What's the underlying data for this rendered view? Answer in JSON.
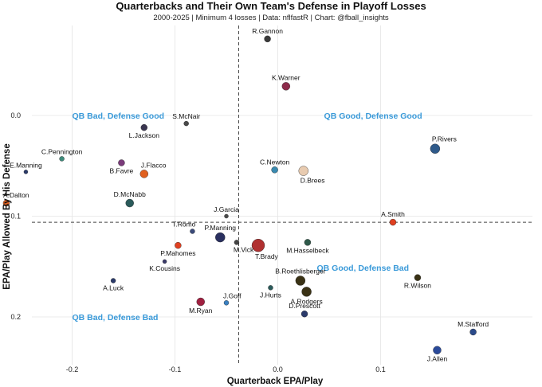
{
  "chart_data": {
    "type": "scatter",
    "title": "Quarterbacks and Their Own Team's Defense in Playoff Losses",
    "subtitle": "2000-2025 | Minimum 4 losses | Data: nflfastR | Chart: @fball_insights",
    "xlabel": "Quarterback EPA/Play",
    "ylabel": "EPA/Play Allowed By His Defense",
    "xlim": [
      -0.26,
      0.2
    ],
    "ylim": [
      0.235,
      -0.095
    ],
    "y_reversed": true,
    "x_ticks": [
      -0.2,
      -0.1,
      0.0,
      0.1
    ],
    "x_tick_labels": [
      "-0.2",
      "-0.1",
      "0.0",
      "0.1"
    ],
    "y_ticks": [
      0.0,
      0.1,
      0.2
    ],
    "y_tick_labels": [
      "0.0",
      "0.1",
      "0.2"
    ],
    "x_ref": -0.038,
    "y_ref": 0.106,
    "grid": true,
    "quadrant_labels": [
      {
        "text": "QB Bad, Defense Good",
        "x": -0.2,
        "y": 0.0
      },
      {
        "text": "QB Good, Defense Good",
        "x": 0.045,
        "y": 0.0
      },
      {
        "text": "QB Good, Defense Bad",
        "x": 0.038,
        "y": 0.151
      },
      {
        "text": "QB Bad, Defense Bad",
        "x": -0.2,
        "y": 0.2
      }
    ],
    "points": [
      {
        "name": "R.Gannon",
        "x": -0.01,
        "y": -0.076,
        "size": 4,
        "color": "#3a3a3a",
        "label_pos": "above"
      },
      {
        "name": "K.Warner",
        "x": 0.008,
        "y": -0.029,
        "size": 5,
        "color": "#8c2a4a",
        "label_pos": "above"
      },
      {
        "name": "S.McNair",
        "x": -0.089,
        "y": 0.008,
        "size": 3,
        "color": "#4a4a4a",
        "label_pos": "above"
      },
      {
        "name": "L.Jackson",
        "x": -0.13,
        "y": 0.012,
        "size": 4,
        "color": "#3a3550",
        "label_pos": "below"
      },
      {
        "name": "P.Rivers",
        "x": 0.153,
        "y": 0.033,
        "size": 6,
        "color": "#2f5a8a",
        "label_pos": "above-right"
      },
      {
        "name": "C.Pennington",
        "x": -0.21,
        "y": 0.043,
        "size": 3,
        "color": "#3d8a7a",
        "label_pos": "above"
      },
      {
        "name": "E.Manning",
        "x": -0.245,
        "y": 0.056,
        "size": 2.5,
        "color": "#2a3a6a",
        "label_pos": "above"
      },
      {
        "name": "B.Favre",
        "x": -0.152,
        "y": 0.047,
        "size": 4,
        "color": "#7a3a7a",
        "label_pos": "below"
      },
      {
        "name": "J.Flacco",
        "x": -0.13,
        "y": 0.058,
        "size": 5,
        "color": "#e0601f",
        "label_pos": "above-right"
      },
      {
        "name": "C.Newton",
        "x": -0.003,
        "y": 0.054,
        "size": 4,
        "color": "#3a8ab0",
        "label_pos": "above"
      },
      {
        "name": "D.Brees",
        "x": 0.025,
        "y": 0.055,
        "size": 6,
        "color": "#e8cbb0",
        "label_pos": "below-right"
      },
      {
        "name": "A.Dalton",
        "x": -0.264,
        "y": 0.087,
        "size": 4,
        "color": "#e0601f",
        "label_pos": "above-right"
      },
      {
        "name": "D.McNabb",
        "x": -0.144,
        "y": 0.087,
        "size": 5,
        "color": "#2a5a5a",
        "label_pos": "above"
      },
      {
        "name": "J.Garcia",
        "x": -0.05,
        "y": 0.1,
        "size": 2.5,
        "color": "#4a4a4a",
        "label_pos": "above"
      },
      {
        "name": "A.Smith",
        "x": 0.112,
        "y": 0.106,
        "size": 4,
        "color": "#e04020",
        "label_pos": "above"
      },
      {
        "name": "T.Romo",
        "x": -0.083,
        "y": 0.115,
        "size": 3,
        "color": "#3a4a7a",
        "label_pos": "above-left"
      },
      {
        "name": "P.Manning",
        "x": -0.056,
        "y": 0.121,
        "size": 6,
        "color": "#2a3060",
        "label_pos": "above"
      },
      {
        "name": "M.Vick",
        "x": -0.04,
        "y": 0.126,
        "size": 3,
        "color": "#444444",
        "label_pos": "below-right"
      },
      {
        "name": "T.Brady",
        "x": -0.019,
        "y": 0.129,
        "size": 8,
        "color": "#b03030",
        "label_pos": "below-right"
      },
      {
        "name": "M.Hasselbeck",
        "x": 0.029,
        "y": 0.126,
        "size": 4,
        "color": "#2f5a4a",
        "label_pos": "below"
      },
      {
        "name": "P.Mahomes",
        "x": -0.097,
        "y": 0.129,
        "size": 4,
        "color": "#e04020",
        "label_pos": "below"
      },
      {
        "name": "K.Cousins",
        "x": -0.11,
        "y": 0.145,
        "size": 2.5,
        "color": "#3a3a6a",
        "label_pos": "below"
      },
      {
        "name": "B.Roethlisberger",
        "x": 0.022,
        "y": 0.164,
        "size": 6,
        "color": "#3a3215",
        "label_pos": "above"
      },
      {
        "name": "R.Wilson",
        "x": 0.136,
        "y": 0.161,
        "size": 4,
        "color": "#3a3215",
        "label_pos": "below"
      },
      {
        "name": "A.Luck",
        "x": -0.16,
        "y": 0.164,
        "size": 3,
        "color": "#2a3a6a",
        "label_pos": "below"
      },
      {
        "name": "J.Hurts",
        "x": -0.007,
        "y": 0.171,
        "size": 3,
        "color": "#2a5a5a",
        "label_pos": "below"
      },
      {
        "name": "A.Rodgers",
        "x": 0.028,
        "y": 0.175,
        "size": 6,
        "color": "#3a3215",
        "label_pos": "below"
      },
      {
        "name": "J.Goff",
        "x": -0.05,
        "y": 0.186,
        "size": 3,
        "color": "#3a80c0",
        "label_pos": "above-right"
      },
      {
        "name": "M.Ryan",
        "x": -0.075,
        "y": 0.185,
        "size": 5,
        "color": "#a02040",
        "label_pos": "below"
      },
      {
        "name": "D.Prescott",
        "x": 0.026,
        "y": 0.197,
        "size": 4,
        "color": "#2a3a6a",
        "label_pos": "above"
      },
      {
        "name": "M.Stafford",
        "x": 0.19,
        "y": 0.215,
        "size": 4,
        "color": "#2a4a8a",
        "label_pos": "above"
      },
      {
        "name": "J.Allen",
        "x": 0.155,
        "y": 0.233,
        "size": 5,
        "color": "#2a4a9a",
        "label_pos": "below"
      }
    ]
  }
}
